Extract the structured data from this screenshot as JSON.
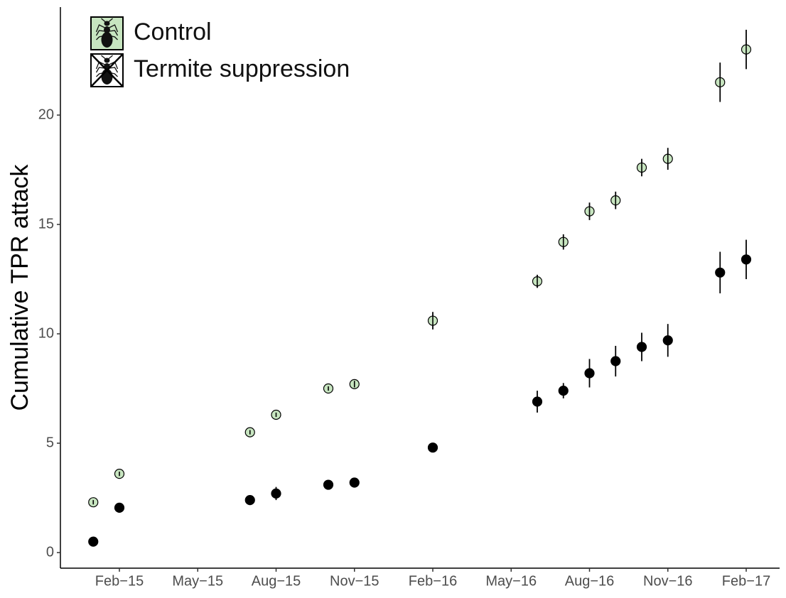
{
  "chart_data": {
    "type": "scatter",
    "y_label": "Cumulative TPR attack",
    "x": [
      "2015-01",
      "2015-02",
      "2015-07",
      "2015-08",
      "2015-10",
      "2015-11",
      "2016-02",
      "2016-06",
      "2016-07",
      "2016-08",
      "2016-09",
      "2016-10",
      "2016-11",
      "2017-01",
      "2017-02"
    ],
    "series": [
      {
        "name": "Control",
        "color": "#c7e5c0",
        "values": [
          2.3,
          3.6,
          5.5,
          6.3,
          7.5,
          7.7,
          10.6,
          12.4,
          14.2,
          15.6,
          16.1,
          17.6,
          18.0,
          21.5,
          23.0
        ],
        "errors": [
          0.1,
          0.1,
          0.1,
          0.1,
          0.1,
          0.15,
          0.4,
          0.3,
          0.35,
          0.4,
          0.4,
          0.4,
          0.5,
          0.9,
          0.9
        ]
      },
      {
        "name": "Termite suppression",
        "color": "#000000",
        "values": [
          0.5,
          2.05,
          2.4,
          2.7,
          3.1,
          3.2,
          4.8,
          6.9,
          7.4,
          8.2,
          8.75,
          9.4,
          9.7,
          12.8,
          13.4
        ],
        "errors": [
          0.1,
          0.2,
          0.2,
          0.3,
          0.2,
          0.2,
          0.2,
          0.5,
          0.35,
          0.65,
          0.7,
          0.65,
          0.75,
          0.95,
          0.9
        ]
      }
    ],
    "xlim": [
      "2014-12",
      "2017-03"
    ],
    "xticks": [
      {
        "value": "2015-02",
        "label": "Feb−15"
      },
      {
        "value": "2015-05",
        "label": "May−15"
      },
      {
        "value": "2015-08",
        "label": "Aug−15"
      },
      {
        "value": "2015-11",
        "label": "Nov−15"
      },
      {
        "value": "2016-02",
        "label": "Feb−16"
      },
      {
        "value": "2016-05",
        "label": "May−16"
      },
      {
        "value": "2016-08",
        "label": "Aug−16"
      },
      {
        "value": "2016-11",
        "label": "Nov−16"
      },
      {
        "value": "2017-02",
        "label": "Feb−17"
      }
    ],
    "ylim": [
      -0.7,
      24.9
    ],
    "yticks": [
      0,
      5,
      10,
      15,
      20
    ],
    "grid": false,
    "legend": "top-left"
  }
}
